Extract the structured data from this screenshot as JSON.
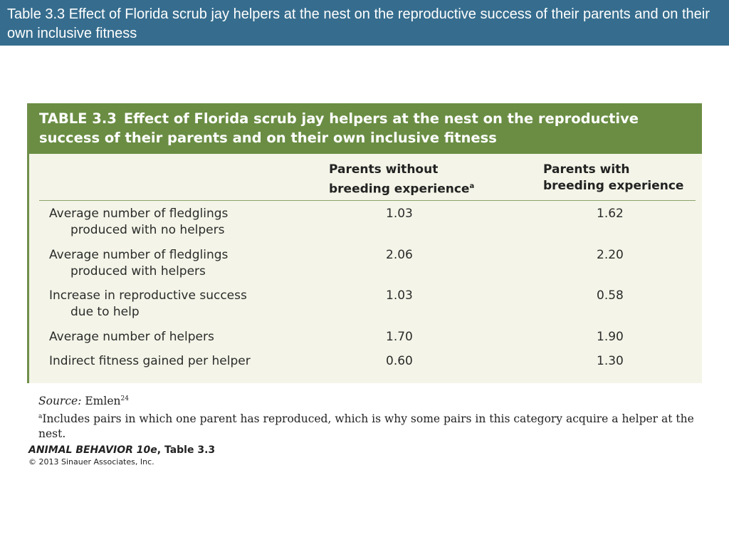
{
  "slide_title": "Table 3.3  Effect of Florida scrub jay helpers at the nest on the reproductive success of their parents and on their own inclusive fitness",
  "table": {
    "label": "TABLE 3.3",
    "caption": "Effect of Florida scrub jay helpers at the nest on the reproductive success of their parents and on their own inclusive fitness",
    "columns": [
      {
        "line1": "Parents without",
        "line2": "breeding experience",
        "footnote_mark": "a"
      },
      {
        "line1": "Parents with",
        "line2": "breeding experience",
        "footnote_mark": ""
      }
    ],
    "rows": [
      {
        "line1": "Average number of fledglings",
        "line2": "produced with no helpers",
        "v1": "1.03",
        "v2": "1.62"
      },
      {
        "line1": "Average number of fledglings",
        "line2": "produced with helpers",
        "v1": "2.06",
        "v2": "2.20"
      },
      {
        "line1": "Increase in reproductive success",
        "line2": "due to help",
        "v1": "1.03",
        "v2": "0.58"
      },
      {
        "line1": "Average number of helpers",
        "line2": "",
        "v1": "1.70",
        "v2": "1.90"
      },
      {
        "line1": "Indirect fitness gained per helper",
        "line2": "",
        "v1": "0.60",
        "v2": "1.30"
      }
    ]
  },
  "notes": {
    "source_label": "Source:",
    "source_text": "Emlen",
    "source_ref": "24",
    "footnote_mark": "a",
    "footnote_text": "Includes pairs in which one parent has reproduced, which is why some pairs in this category acquire a helper at the nest."
  },
  "credit": {
    "book_title": "ANIMAL BEHAVIOR 10e",
    "book_suffix": ", Table 3.3",
    "copyright": "© 2013 Sinauer Associates, Inc."
  }
}
